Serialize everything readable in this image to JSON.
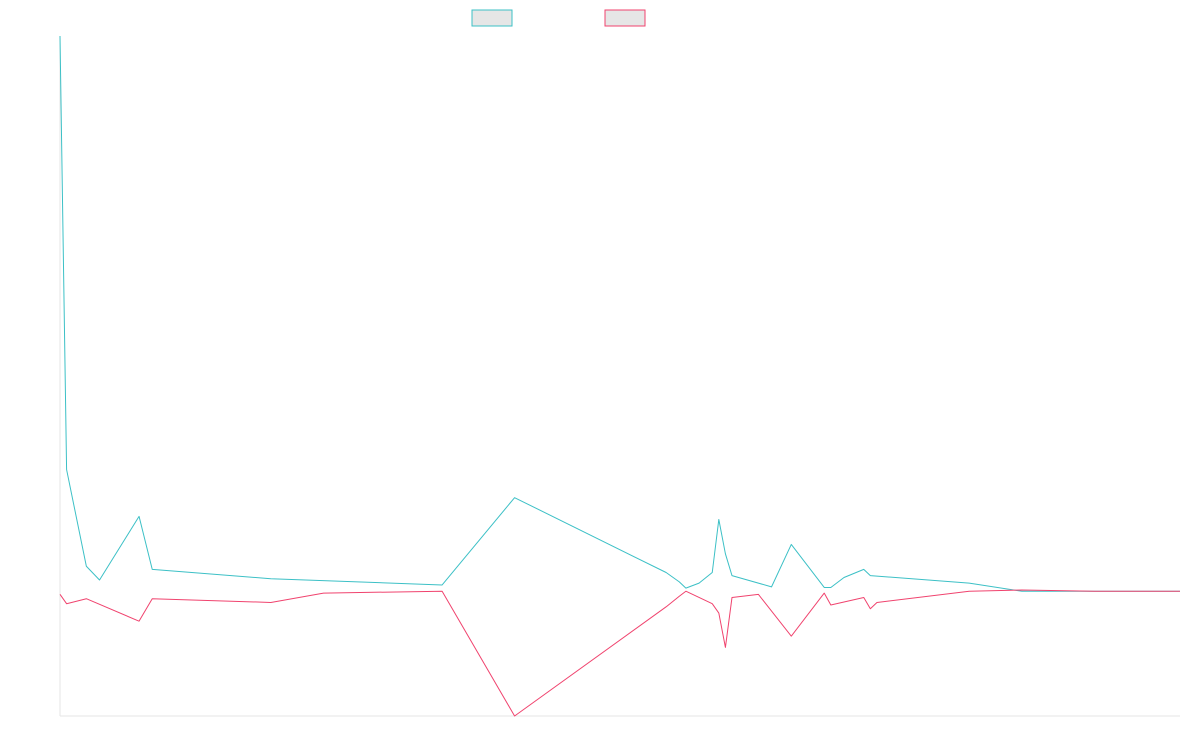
{
  "chart_data": {
    "type": "line",
    "title": "",
    "xlabel": "",
    "ylabel": "",
    "ylim": [
      -200,
      890
    ],
    "grid": false,
    "legend": "top-center",
    "x_count": 171,
    "series": [
      {
        "color": "#3cc0c6",
        "legend_fill": "#e6e6e6",
        "points": [
          [
            0,
            890
          ],
          [
            1,
            195
          ],
          [
            4,
            40
          ],
          [
            6,
            18
          ],
          [
            12,
            120
          ],
          [
            14,
            35
          ],
          [
            32,
            20
          ],
          [
            58,
            10
          ],
          [
            69,
            150
          ],
          [
            92,
            30
          ],
          [
            94,
            15
          ],
          [
            95,
            5
          ],
          [
            97,
            13
          ],
          [
            99,
            30
          ],
          [
            100,
            115
          ],
          [
            101,
            60
          ],
          [
            102,
            25
          ],
          [
            108,
            7
          ],
          [
            111,
            75
          ],
          [
            116,
            6
          ],
          [
            117,
            6
          ],
          [
            119,
            22
          ],
          [
            122,
            35
          ],
          [
            123,
            25
          ],
          [
            138,
            13
          ],
          [
            146,
            0
          ],
          [
            157,
            0
          ],
          [
            160,
            0
          ],
          [
            170,
            0
          ]
        ]
      },
      {
        "color": "#f0436e",
        "legend_fill": "#e6e6e6",
        "points": [
          [
            0,
            -5
          ],
          [
            1,
            -20
          ],
          [
            4,
            -12
          ],
          [
            12,
            -48
          ],
          [
            14,
            -12
          ],
          [
            32,
            -18
          ],
          [
            40,
            -3
          ],
          [
            58,
            0
          ],
          [
            69,
            -200
          ],
          [
            92,
            -25
          ],
          [
            94,
            -8
          ],
          [
            95,
            0
          ],
          [
            97,
            -10
          ],
          [
            99,
            -20
          ],
          [
            100,
            -35
          ],
          [
            101,
            -90
          ],
          [
            102,
            -10
          ],
          [
            106,
            -5
          ],
          [
            111,
            -72
          ],
          [
            116,
            -3
          ],
          [
            117,
            -22
          ],
          [
            122,
            -10
          ],
          [
            123,
            -28
          ],
          [
            124,
            -18
          ],
          [
            138,
            0
          ],
          [
            146,
            2
          ],
          [
            157,
            0
          ],
          [
            160,
            0
          ],
          [
            170,
            0
          ]
        ]
      }
    ]
  }
}
